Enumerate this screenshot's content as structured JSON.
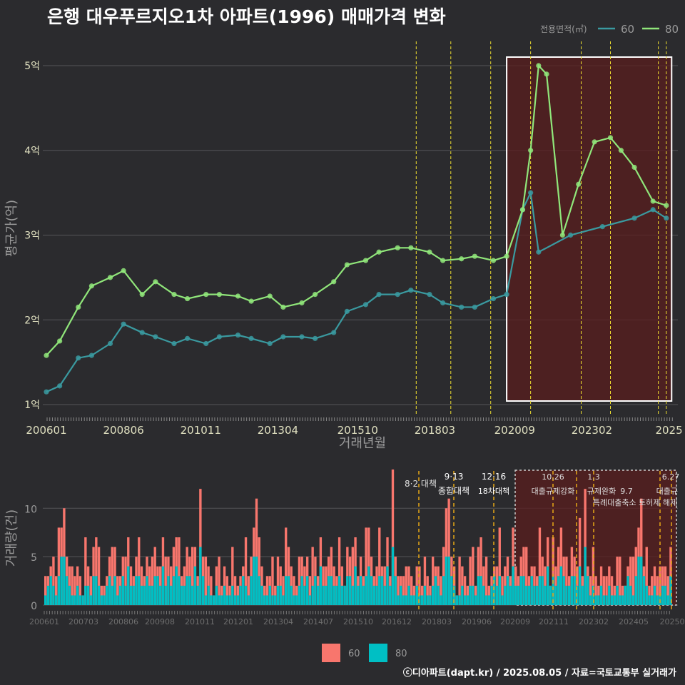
{
  "title": "은행 대우푸르지오1차 아파트(1996) 매매가격 변화",
  "footer": "ⓒ디아파트(dapt.kr) / 2025.08.05 / 자료=국토교통부 실거래가",
  "colors": {
    "background": "#2b2b2e",
    "grid": "#555558",
    "series_60": "#3a9aa0",
    "series_80": "#90e67a",
    "vol_60": "#f8766d",
    "vol_80": "#00bfc4",
    "policy_line_top": "#f0e030",
    "policy_line_bottom": "#e6a817",
    "highlight_fill": "#5a1e1e",
    "highlight_border": "#ffffff",
    "text": "#ffffff",
    "axis_text": "#e0e0c0",
    "muted_text": "#9a9a9a"
  },
  "chart_data": [
    {
      "type": "line",
      "title": "은행 대우푸르지오1차 아파트(1996) 매매가격 변화",
      "xlabel": "거래년월",
      "ylabel": "평균가(억)",
      "x_tick_labels": [
        "200601",
        "200806",
        "201011",
        "201304",
        "201510",
        "201803",
        "202009",
        "202302",
        "2025"
      ],
      "y_tick_labels": [
        "1억",
        "2억",
        "3억",
        "4억",
        "5억"
      ],
      "ylim": [
        1,
        5
      ],
      "legend_title": "전용면적(㎡)",
      "legend_position": "top-right",
      "grid": true,
      "series": [
        {
          "name": "60",
          "x": [
            "2006-01",
            "2006-06",
            "2007-01",
            "2007-06",
            "2008-01",
            "2008-06",
            "2009-01",
            "2009-06",
            "2010-01",
            "2010-06",
            "2011-01",
            "2011-06",
            "2012-01",
            "2012-06",
            "2013-01",
            "2013-06",
            "2014-01",
            "2014-06",
            "2015-01",
            "2015-06",
            "2016-01",
            "2016-06",
            "2017-01",
            "2017-06",
            "2018-01",
            "2018-06",
            "2019-01",
            "2019-06",
            "2020-01",
            "2020-06",
            "2020-12",
            "2021-03",
            "2021-06",
            "2022-06",
            "2023-06",
            "2024-06",
            "2025-01",
            "2025-06"
          ],
          "values": [
            1.15,
            1.22,
            1.55,
            1.58,
            1.72,
            1.95,
            1.85,
            1.8,
            1.72,
            1.78,
            1.72,
            1.8,
            1.82,
            1.78,
            1.72,
            1.8,
            1.8,
            1.78,
            1.85,
            2.1,
            2.18,
            2.3,
            2.3,
            2.35,
            2.3,
            2.2,
            2.15,
            2.15,
            2.25,
            2.3,
            3.3,
            3.5,
            2.8,
            3.0,
            3.1,
            3.2,
            3.3,
            3.2
          ]
        },
        {
          "name": "80",
          "x": [
            "2006-01",
            "2006-06",
            "2007-01",
            "2007-06",
            "2008-01",
            "2008-06",
            "2009-01",
            "2009-06",
            "2010-01",
            "2010-06",
            "2011-01",
            "2011-06",
            "2012-01",
            "2012-06",
            "2013-01",
            "2013-06",
            "2014-01",
            "2014-06",
            "2015-01",
            "2015-06",
            "2016-01",
            "2016-06",
            "2017-01",
            "2017-06",
            "2018-01",
            "2018-06",
            "2019-01",
            "2019-06",
            "2020-01",
            "2020-06",
            "2020-12",
            "2021-03",
            "2021-06",
            "2021-09",
            "2022-03",
            "2022-09",
            "2023-03",
            "2023-09",
            "2024-01",
            "2024-06",
            "2025-01",
            "2025-06"
          ],
          "values": [
            1.58,
            1.75,
            2.15,
            2.4,
            2.5,
            2.58,
            2.3,
            2.45,
            2.3,
            2.25,
            2.3,
            2.3,
            2.28,
            2.22,
            2.28,
            2.15,
            2.2,
            2.3,
            2.45,
            2.65,
            2.7,
            2.8,
            2.85,
            2.85,
            2.8,
            2.7,
            2.72,
            2.75,
            2.7,
            2.75,
            3.3,
            4.0,
            5.0,
            4.9,
            3.0,
            3.6,
            4.1,
            4.15,
            4.0,
            3.8,
            3.4,
            3.35
          ]
        }
      ],
      "policy_lines": [
        "2017-08",
        "2018-09",
        "2019-12",
        "2021-03",
        "2022-10",
        "2023-09",
        "2025-03",
        "2025-06"
      ],
      "highlight_range": [
        "2020-06",
        "2025-08"
      ]
    },
    {
      "type": "bar",
      "ylabel": "거래량(건)",
      "y_tick_labels": [
        "0",
        "5",
        "10"
      ],
      "ylim": [
        0,
        14
      ],
      "x_tick_labels": [
        "200601",
        "200703",
        "200806",
        "200908",
        "201011",
        "201201",
        "201304",
        "201407",
        "201510",
        "201612",
        "201803",
        "201906",
        "202009",
        "202111",
        "202302",
        "202405",
        "20250"
      ],
      "legend_position": "bottom",
      "legend": [
        "60",
        "80"
      ],
      "annotations": [
        {
          "date": "8·2",
          "text": "8·2 대책"
        },
        {
          "date": "9·13",
          "text": "종합대책"
        },
        {
          "date": "12·16",
          "text": "18차대책"
        },
        {
          "date": "10.26",
          "text": "대출규제강화"
        },
        {
          "date": "1.3",
          "text": "규제완화"
        },
        {
          "date": "9.7",
          "text": "특례대출축소 토허제 해제"
        },
        {
          "date": "6.27",
          "text": "대출규"
        }
      ],
      "series": [
        {
          "name": "60",
          "monthly_totals_sample": [
            2,
            3,
            4,
            5,
            3,
            6,
            8,
            11,
            5,
            4,
            2,
            3,
            4,
            3,
            2,
            5,
            4,
            3,
            6,
            7,
            4,
            3,
            2,
            3,
            5,
            4,
            6,
            3,
            4,
            5,
            3,
            7,
            4,
            3,
            5,
            6,
            4,
            3,
            5,
            4,
            3,
            6,
            5,
            4,
            7,
            3,
            5,
            4,
            6,
            8,
            5,
            3,
            4,
            6,
            5,
            4,
            7,
            3,
            12,
            5,
            3,
            4,
            3,
            2,
            4,
            3,
            2,
            4,
            3,
            2,
            5,
            3
          ]
        },
        {
          "name": "80",
          "monthly_totals_sample": [
            1,
            2,
            3,
            2,
            1,
            3,
            5,
            5,
            3,
            2,
            1,
            1,
            2,
            1,
            1,
            2,
            2,
            1,
            3,
            3,
            2,
            1,
            1,
            2,
            3,
            2,
            3,
            1,
            2,
            3,
            2,
            4,
            2,
            2,
            3,
            3,
            2,
            2,
            3,
            2,
            2,
            3,
            3,
            2,
            4,
            2,
            3,
            2,
            3,
            4,
            3,
            2,
            2,
            3,
            3,
            2,
            4,
            2,
            6,
            3,
            1,
            2,
            1,
            1,
            2,
            1,
            1,
            2,
            1,
            1,
            2,
            1
          ]
        }
      ]
    }
  ]
}
